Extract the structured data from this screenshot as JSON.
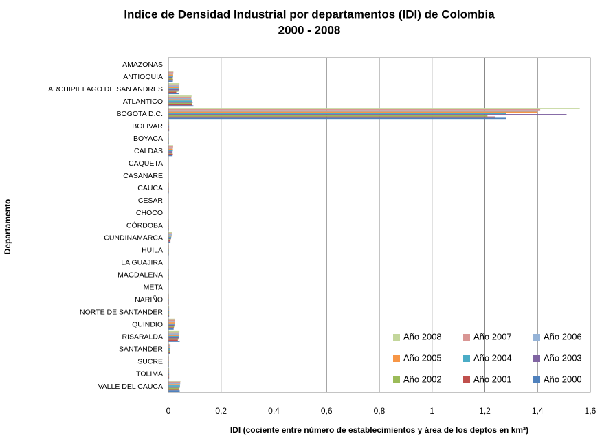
{
  "chart_data": {
    "type": "barh",
    "title": "Indice de Densidad Industrial por departamentos (IDI) de Colombia",
    "subtitle": "2000 - 2008",
    "x_label": "IDI (cociente entre número de establecimientos y área de los deptos en km²)",
    "y_label": "Departamento",
    "categories": [
      "AMAZONAS",
      "ANTIOQUIA",
      "ARCHIPIELAGO DE SAN ANDRES",
      "ATLANTICO",
      "BOGOTA D.C.",
      "BOLIVAR",
      "BOYACA",
      "CALDAS",
      "CAQUETA",
      "CASANARE",
      "CAUCA",
      "CESAR",
      "CHOCO",
      "CÓRDOBA",
      "CUNDINAMARCA",
      "HUILA",
      "LA GUAJIRA",
      "MAGDALENA",
      "META",
      "NARIÑO",
      "NORTE DE SANTANDER",
      "QUINDIO",
      "RISARALDA",
      "SANTANDER",
      "SUCRE",
      "TOLIMA",
      "VALLE DEL CAUCA"
    ],
    "series": [
      {
        "name": "Año 2008",
        "color": "#c3d69b",
        "values": [
          0.001,
          0.019,
          0.042,
          0.088,
          1.56,
          0.003,
          0.002,
          0.018,
          0.001,
          0.001,
          0.002,
          0.001,
          0.001,
          0.002,
          0.014,
          0.002,
          0.001,
          0.002,
          0.001,
          0.002,
          0.003,
          0.026,
          0.042,
          0.008,
          0.002,
          0.003,
          0.046
        ]
      },
      {
        "name": "Año 2007",
        "color": "#d99694",
        "values": [
          0.001,
          0.019,
          0.041,
          0.087,
          1.41,
          0.003,
          0.002,
          0.018,
          0.001,
          0.001,
          0.002,
          0.001,
          0.001,
          0.002,
          0.013,
          0.002,
          0.001,
          0.002,
          0.001,
          0.002,
          0.003,
          0.025,
          0.041,
          0.008,
          0.002,
          0.003,
          0.045
        ]
      },
      {
        "name": "Año 2006",
        "color": "#95b3d7",
        "values": [
          0.001,
          0.018,
          0.041,
          0.087,
          1.4,
          0.003,
          0.002,
          0.017,
          0.001,
          0.001,
          0.002,
          0.001,
          0.001,
          0.002,
          0.013,
          0.002,
          0.001,
          0.002,
          0.001,
          0.002,
          0.003,
          0.025,
          0.04,
          0.008,
          0.002,
          0.003,
          0.045
        ]
      },
      {
        "name": "Año 2005",
        "color": "#f79646",
        "values": [
          0.001,
          0.018,
          0.04,
          0.09,
          1.4,
          0.003,
          0.002,
          0.017,
          0.001,
          0.001,
          0.002,
          0.001,
          0.001,
          0.002,
          0.012,
          0.002,
          0.001,
          0.002,
          0.001,
          0.002,
          0.003,
          0.024,
          0.04,
          0.007,
          0.002,
          0.003,
          0.044
        ]
      },
      {
        "name": "Año 2004",
        "color": "#4bacc6",
        "values": [
          0.001,
          0.018,
          0.04,
          0.09,
          1.28,
          0.003,
          0.002,
          0.017,
          0.001,
          0.001,
          0.002,
          0.001,
          0.001,
          0.002,
          0.011,
          0.002,
          0.001,
          0.002,
          0.001,
          0.002,
          0.003,
          0.024,
          0.039,
          0.007,
          0.002,
          0.003,
          0.044
        ]
      },
      {
        "name": "Año 2003",
        "color": "#8064a2",
        "values": [
          0.001,
          0.017,
          0.04,
          0.092,
          1.51,
          0.003,
          0.002,
          0.016,
          0.001,
          0.001,
          0.002,
          0.001,
          0.001,
          0.002,
          0.01,
          0.002,
          0.001,
          0.002,
          0.001,
          0.002,
          0.003,
          0.023,
          0.039,
          0.007,
          0.002,
          0.003,
          0.043
        ]
      },
      {
        "name": "Año 2002",
        "color": "#9bbb59",
        "values": [
          0.001,
          0.017,
          0.038,
          0.09,
          1.21,
          0.003,
          0.002,
          0.016,
          0.001,
          0.001,
          0.002,
          0.001,
          0.001,
          0.002,
          0.009,
          0.002,
          0.001,
          0.002,
          0.001,
          0.002,
          0.003,
          0.022,
          0.038,
          0.007,
          0.002,
          0.003,
          0.042
        ]
      },
      {
        "name": "Año 2001",
        "color": "#c0504d",
        "values": [
          0.001,
          0.018,
          0.03,
          0.09,
          1.24,
          0.003,
          0.002,
          0.017,
          0.001,
          0.001,
          0.002,
          0.001,
          0.001,
          0.002,
          0.008,
          0.002,
          0.001,
          0.002,
          0.001,
          0.002,
          0.003,
          0.021,
          0.036,
          0.006,
          0.002,
          0.003,
          0.041
        ]
      },
      {
        "name": "Año  2000",
        "color": "#4f81bd",
        "values": [
          0.001,
          0.017,
          0.039,
          0.095,
          1.28,
          0.003,
          0.002,
          0.016,
          0.001,
          0.001,
          0.002,
          0.001,
          0.001,
          0.002,
          0.008,
          0.002,
          0.001,
          0.002,
          0.001,
          0.002,
          0.003,
          0.02,
          0.043,
          0.006,
          0.002,
          0.003,
          0.043
        ]
      }
    ],
    "xlim": [
      0,
      1.6
    ],
    "xticks": [
      0,
      {
        "value": 0.2,
        "label": "0,2"
      },
      {
        "value": 0.4,
        "label": "0,4"
      },
      {
        "value": 0.6,
        "label": "0,6"
      },
      {
        "value": 0.8,
        "label": "0,8"
      },
      1,
      {
        "value": 1.2,
        "label": "1,2"
      },
      {
        "value": 1.4,
        "label": "1,4"
      },
      {
        "value": 1.6,
        "label": "1,6"
      }
    ],
    "grid": true,
    "legend": "lower right"
  }
}
